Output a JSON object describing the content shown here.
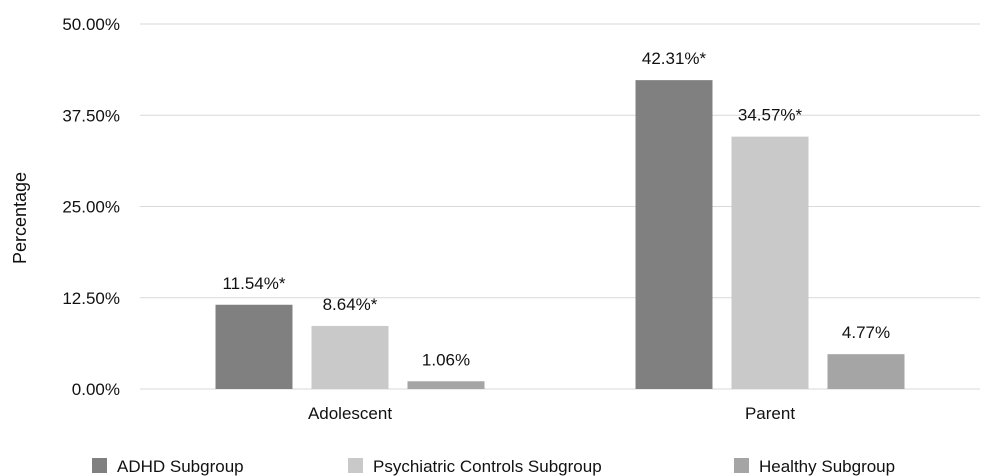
{
  "chart_data": {
    "type": "bar",
    "title": "",
    "xlabel": "",
    "ylabel": "Percentage",
    "ylim": [
      0,
      50
    ],
    "yticks": [
      "0.00%",
      "12.50%",
      "25.00%",
      "37.50%",
      "50.00%"
    ],
    "ytick_values": [
      0,
      12.5,
      25,
      37.5,
      50
    ],
    "grid": true,
    "legend_position": "bottom",
    "categories": [
      "Adolescent",
      "Parent"
    ],
    "series": [
      {
        "name": "ADHD Subgroup",
        "color": "#808080",
        "values": [
          11.54,
          42.31
        ],
        "labels": [
          "11.54%*",
          "42.31%*"
        ]
      },
      {
        "name": "Psychiatric Controls Subgroup",
        "color": "#c9c9c9",
        "values": [
          8.64,
          34.57
        ],
        "labels": [
          "8.64%*",
          "34.57%*"
        ]
      },
      {
        "name": "Healthy Subgroup",
        "color": "#a5a5a5",
        "values": [
          1.06,
          4.77
        ],
        "labels": [
          "1.06%",
          "4.77%"
        ]
      }
    ]
  }
}
